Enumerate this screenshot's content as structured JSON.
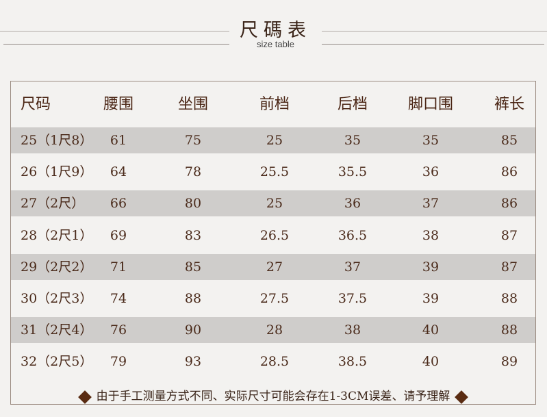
{
  "title": "尺碼表",
  "subtitle": "size table",
  "headers": [
    "尺码",
    "腰围",
    "坐围",
    "前档",
    "后档",
    "脚口围",
    "裤长"
  ],
  "rows": [
    [
      "25（1尺8）",
      "61",
      "75",
      "25",
      "35",
      "35",
      "85"
    ],
    [
      "26（1尺9）",
      "64",
      "78",
      "25.5",
      "35.5",
      "36",
      "86"
    ],
    [
      "27（2尺）",
      "66",
      "80",
      "25",
      "36",
      "37",
      "86"
    ],
    [
      "28（2尺1）",
      "69",
      "83",
      "26.5",
      "36.5",
      "38",
      "87"
    ],
    [
      "29（2尺2）",
      "71",
      "85",
      "27",
      "37",
      "39",
      "87"
    ],
    [
      "30（2尺3）",
      "74",
      "88",
      "27.5",
      "37.5",
      "39",
      "88"
    ],
    [
      "31（2尺4）",
      "76",
      "90",
      "28",
      "38",
      "40",
      "88"
    ],
    [
      "32（2尺5）",
      "79",
      "93",
      "28.5",
      "38.5",
      "40",
      "89"
    ]
  ],
  "note": "由于手工测量方式不同、实际尺寸可能会存在1-3CM误差、请予理解",
  "colors": {
    "stripe": "#cfcdcb",
    "text": "#4a2a1a",
    "diamond": "#5a2c12"
  }
}
